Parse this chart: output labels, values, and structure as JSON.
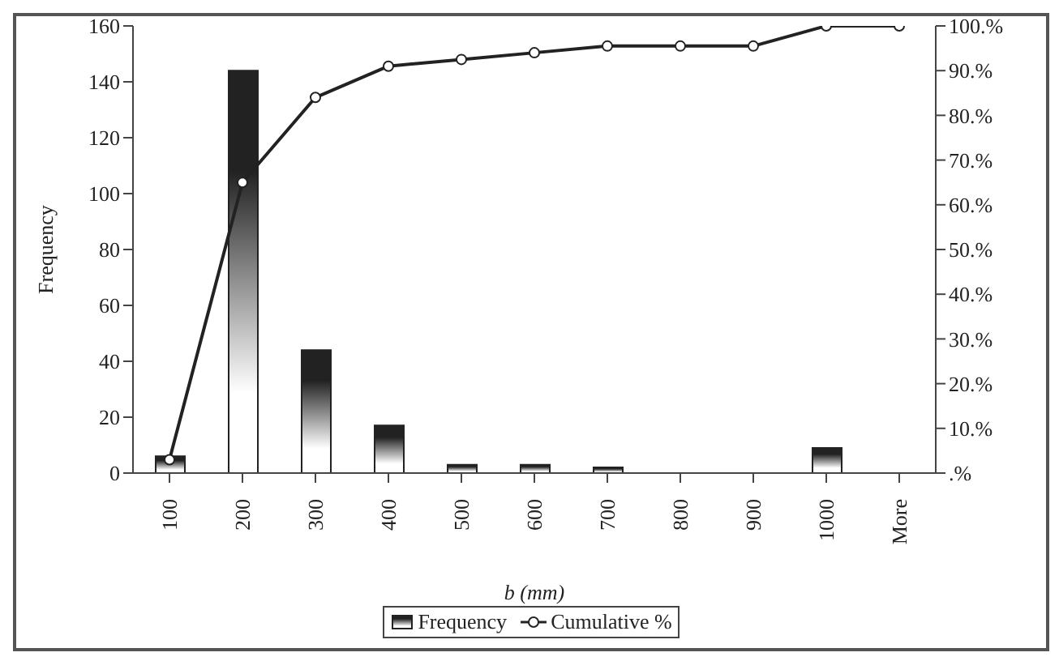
{
  "chart_data": {
    "type": "bar",
    "xlabel": "b (mm)",
    "ylabel": "Frequency",
    "categories": [
      "100",
      "200",
      "300",
      "400",
      "500",
      "600",
      "700",
      "800",
      "900",
      "1000",
      "More"
    ],
    "series": [
      {
        "name": "Frequency",
        "color": "#222222",
        "values": [
          6,
          144,
          44,
          17,
          3,
          3,
          2,
          0,
          0,
          9,
          0
        ]
      },
      {
        "name": "Cumulative %",
        "type": "line",
        "axis": "y2",
        "color": "#222222",
        "marker": "circle",
        "values": [
          3,
          65,
          84,
          91,
          92.5,
          94,
          95.5,
          95.5,
          95.5,
          100,
          100
        ]
      }
    ],
    "ylim": [
      0,
      160
    ],
    "yticks": [
      0,
      20,
      40,
      60,
      80,
      100,
      120,
      140,
      160
    ],
    "y2lim": [
      0,
      100
    ],
    "y2ticks": [
      {
        "value": 0,
        "label": ".%"
      },
      {
        "value": 10,
        "label": "10.%"
      },
      {
        "value": 20,
        "label": "20.%"
      },
      {
        "value": 30,
        "label": "30.%"
      },
      {
        "value": 40,
        "label": "40.%"
      },
      {
        "value": 50,
        "label": "50.%"
      },
      {
        "value": 60,
        "label": "60.%"
      },
      {
        "value": 70,
        "label": "70.%"
      },
      {
        "value": 80,
        "label": "80.%"
      },
      {
        "value": 90,
        "label": "90.%"
      },
      {
        "value": 100,
        "label": "100.%"
      }
    ],
    "grid": false,
    "legend": "bottom"
  }
}
